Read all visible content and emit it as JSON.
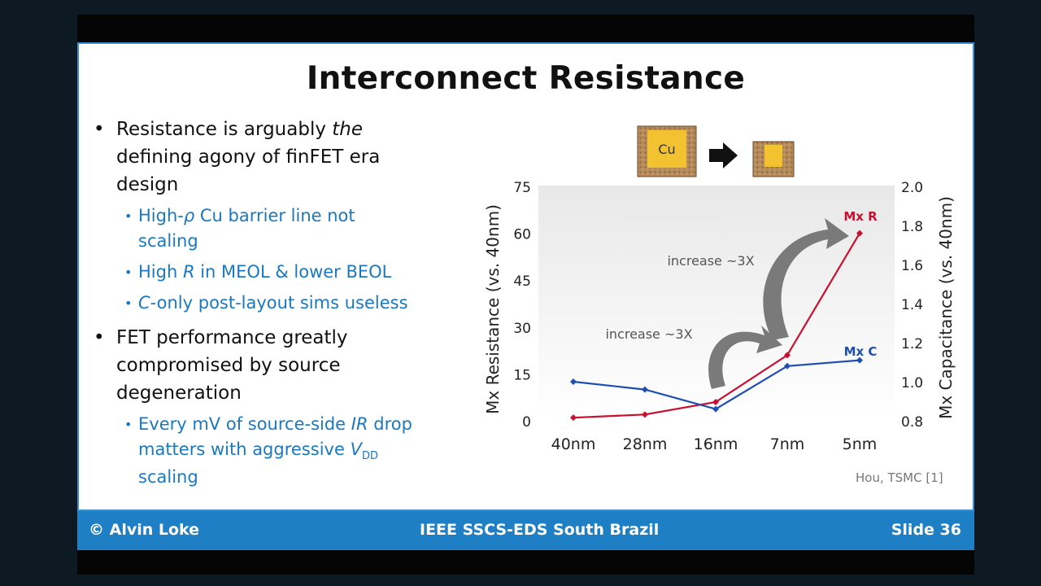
{
  "slide": {
    "title": "Interconnect Resistance",
    "bullets": {
      "b1_part1": "Resistance is arguably ",
      "b1_italic": "the",
      "b1_line2": "defining agony of finFET era",
      "b1_line3": "design",
      "s1_part1": "High-",
      "s1_rho": "ρ",
      "s1_part2": " Cu barrier line not",
      "s1_line2": "scaling",
      "s2_part1": "High ",
      "s2_R": "R",
      "s2_part2": " in MEOL & lower BEOL",
      "s3_C": "C",
      "s3_part2": "-only post-layout sims useless",
      "b2_line1": "FET performance greatly",
      "b2_line2": "compromised by source",
      "b2_line3": "degeneration",
      "s4_part1": "Every mV of source-side ",
      "s4_IR": "IR",
      "s4_part2": "  drop",
      "s4_line2a": "matters with aggressive ",
      "s4_V": "V",
      "s4_DD": "DD",
      "s4_line3": "scaling"
    },
    "credit": "Hou, TSMC [1]",
    "cu_label": "Cu"
  },
  "footer": {
    "left": "© Alvin Loke",
    "center": "IEEE SSCS-EDS South Brazil",
    "right": "Slide 36"
  },
  "chart_data": {
    "type": "line",
    "categories": [
      "40nm",
      "28nm",
      "16nm",
      "7nm",
      "5nm"
    ],
    "ylabel": "Mx Resistance (vs. 40nm)",
    "y2label": "Mx Capacitance (vs. 40nm)",
    "ylim": [
      0,
      75
    ],
    "y2lim": [
      0.8,
      2.0
    ],
    "yticks": [
      "0",
      "15",
      "30",
      "45",
      "60",
      "75"
    ],
    "y2ticks": [
      "0.8",
      "1.0",
      "1.2",
      "1.4",
      "1.6",
      "1.8",
      "2.0"
    ],
    "series": [
      {
        "name": "Mx R",
        "axis": "left",
        "color": "#c8102e",
        "values": [
          1,
          2,
          6,
          21,
          60
        ]
      },
      {
        "name": "Mx C",
        "axis": "right",
        "color": "#1f4fb0",
        "values": [
          1.0,
          0.96,
          0.86,
          1.08,
          1.11
        ]
      }
    ],
    "annotations": [
      "increase ~3X",
      "increase ~3X"
    ]
  }
}
